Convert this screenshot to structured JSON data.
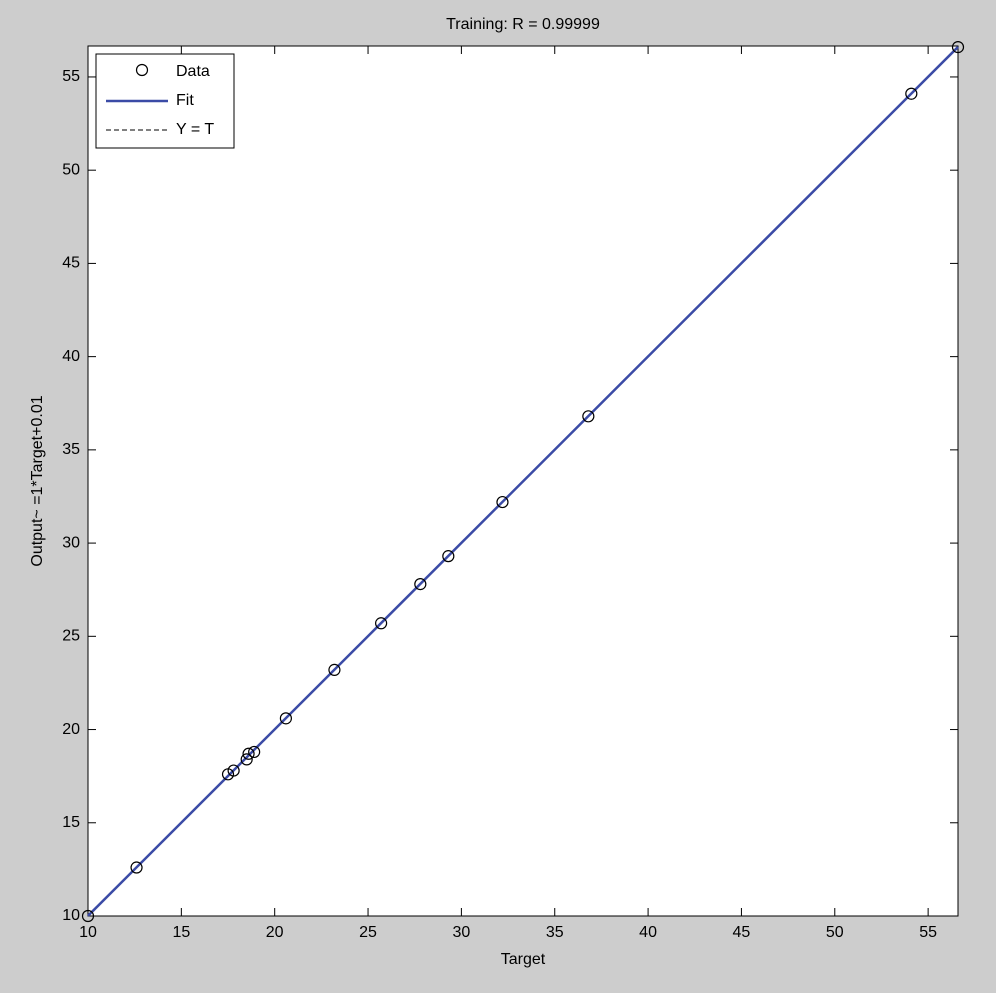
{
  "chart_data": {
    "type": "scatter",
    "title": "Training: R = 0.99999",
    "x_label": "Target",
    "y_label": "Output~ =1*Target+0.01",
    "xlim": [
      10,
      56.6
    ],
    "ylim": [
      10,
      56.66
    ],
    "xticks": [
      10,
      15,
      20,
      25,
      30,
      35,
      40,
      45,
      50,
      55
    ],
    "yticks": [
      10,
      15,
      20,
      25,
      30,
      35,
      40,
      45,
      50,
      55
    ],
    "legend": "upper left",
    "grid": false,
    "series": [
      {
        "name": "Data",
        "type": "scatter",
        "color": "#000000",
        "x": [
          10,
          12.6,
          17.5,
          17.8,
          18.5,
          18.6,
          18.9,
          20.6,
          23.2,
          25.7,
          27.8,
          29.3,
          32.2,
          36.8,
          54.1,
          56.6
        ],
        "values": [
          10,
          12.6,
          17.6,
          17.8,
          18.4,
          18.7,
          18.8,
          20.6,
          23.2,
          25.7,
          27.8,
          29.3,
          32.2,
          36.8,
          54.1,
          56.6
        ]
      },
      {
        "name": "Fit",
        "type": "line",
        "color": "#3b4ba6",
        "x": [
          10,
          56.6
        ],
        "values": [
          10.01,
          56.61
        ]
      },
      {
        "name": "Y = T",
        "type": "dashed",
        "color": "#000000",
        "x": [
          10,
          56.6
        ],
        "values": [
          10,
          56.6
        ]
      }
    ]
  }
}
